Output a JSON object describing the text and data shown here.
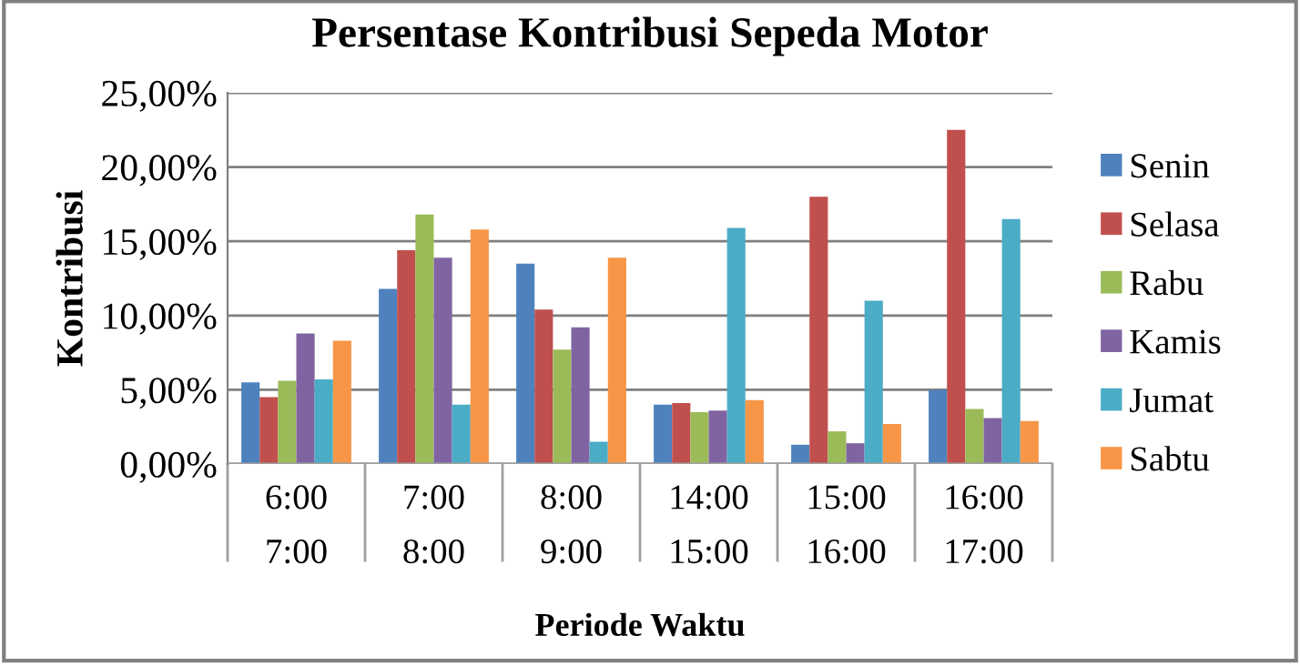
{
  "chart_data": {
    "type": "bar",
    "title": "Persentase Kontribusi Sepeda Motor",
    "xlabel": "Periode Waktu",
    "ylabel": "Kontribusi",
    "categories": [
      "6:00\n7:00",
      "7:00\n8:00",
      "8:00\n9:00",
      "14:00\n15:00",
      "15:00\n16:00",
      "16:00\n17:00"
    ],
    "series": [
      {
        "name": "Senin",
        "color": "#4f81bd",
        "values": [
          5.5,
          11.8,
          13.5,
          4.0,
          1.3,
          5.0
        ]
      },
      {
        "name": "Selasa",
        "color": "#c0504d",
        "values": [
          4.5,
          14.4,
          10.4,
          4.1,
          18.0,
          22.5
        ]
      },
      {
        "name": "Rabu",
        "color": "#9bbb59",
        "values": [
          5.6,
          16.8,
          7.7,
          3.5,
          2.2,
          3.7
        ]
      },
      {
        "name": "Kamis",
        "color": "#8064a2",
        "values": [
          8.8,
          13.9,
          9.2,
          3.6,
          1.4,
          3.1
        ]
      },
      {
        "name": "Jumat",
        "color": "#4bacc6",
        "values": [
          5.7,
          4.0,
          1.5,
          15.9,
          11.0,
          16.5
        ]
      },
      {
        "name": "Sabtu",
        "color": "#f79646",
        "values": [
          8.3,
          15.8,
          13.9,
          4.3,
          2.7,
          2.9
        ]
      }
    ],
    "ylim": [
      0,
      25
    ],
    "yticks": [
      {
        "value": 0,
        "label": "0,00%"
      },
      {
        "value": 5,
        "label": "5,00%"
      },
      {
        "value": 10,
        "label": "10,00%"
      },
      {
        "value": 15,
        "label": "15,00%"
      },
      {
        "value": 20,
        "label": "20,00%"
      },
      {
        "value": 25,
        "label": "25,00%"
      }
    ],
    "grid": "y",
    "legend": "right"
  }
}
